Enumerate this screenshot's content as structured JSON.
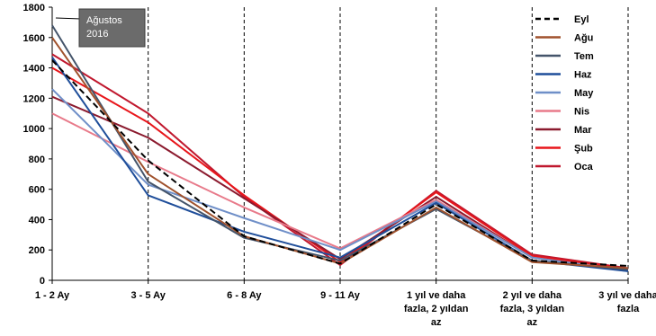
{
  "chart_data": {
    "type": "line",
    "title": "",
    "xlabel": "",
    "ylabel": "",
    "ylim": [
      0,
      1800
    ],
    "yticks": [
      0,
      200,
      400,
      600,
      800,
      1000,
      1200,
      1400,
      1600,
      1800
    ],
    "categories": [
      [
        "1 - 2 Ay"
      ],
      [
        "3 - 5 Ay"
      ],
      [
        "6 - 8 Ay"
      ],
      [
        "9 - 11 Ay"
      ],
      [
        "1 yıl ve daha",
        "fazla, 2 yıldan",
        "az"
      ],
      [
        "2 yıl ve daha",
        "fazla, 3 yıldan",
        "az"
      ],
      [
        "3 yıl ve daha",
        "fazla"
      ]
    ],
    "vertical_gridlines": "dashed",
    "legend_position": "top-right",
    "callout": [
      "Ağustos",
      "2016"
    ],
    "series": [
      {
        "name": "Eyl",
        "color": "#000000",
        "dashed": true,
        "values": [
          1450,
          790,
          290,
          110,
          500,
          130,
          95
        ]
      },
      {
        "name": "Ağu",
        "color": "#A0522D",
        "dashed": false,
        "values": [
          1600,
          700,
          290,
          110,
          480,
          120,
          80
        ]
      },
      {
        "name": "Tem",
        "color": "#44546A",
        "dashed": false,
        "values": [
          1680,
          650,
          280,
          130,
          470,
          130,
          70
        ]
      },
      {
        "name": "Haz",
        "color": "#1F4E9A",
        "dashed": false,
        "values": [
          1470,
          560,
          320,
          150,
          510,
          130,
          60
        ]
      },
      {
        "name": "May",
        "color": "#6F8FC8",
        "dashed": false,
        "values": [
          1260,
          630,
          410,
          200,
          520,
          150,
          60
        ]
      },
      {
        "name": "Nis",
        "color": "#E87A8A",
        "dashed": false,
        "values": [
          1100,
          780,
          480,
          210,
          530,
          150,
          65
        ]
      },
      {
        "name": "Mar",
        "color": "#8B1A2E",
        "dashed": false,
        "values": [
          1210,
          940,
          540,
          140,
          550,
          150,
          70
        ]
      },
      {
        "name": "Şub",
        "color": "#E8161B",
        "dashed": false,
        "values": [
          1400,
          1040,
          560,
          120,
          580,
          160,
          75
        ]
      },
      {
        "name": "Oca",
        "color": "#C0182E",
        "dashed": false,
        "values": [
          1490,
          1100,
          550,
          100,
          590,
          170,
          80
        ]
      }
    ]
  }
}
